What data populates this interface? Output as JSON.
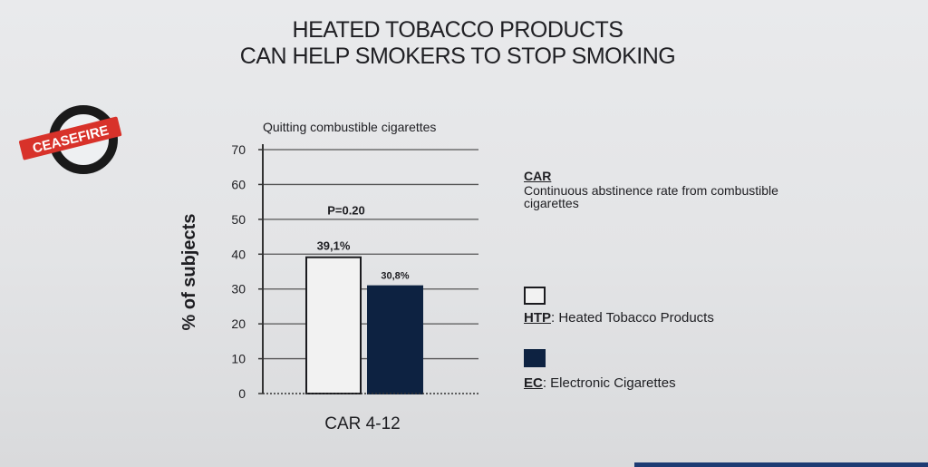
{
  "title_line1": "HEATED TOBACCO PRODUCTS",
  "title_line2": "CAN HELP SMOKERS TO STOP SMOKING",
  "logo": {
    "text": "CEASEFIRE",
    "colors": {
      "ring": "#1a1a1a",
      "banner": "#d8322a"
    }
  },
  "chart_data": {
    "type": "bar",
    "title": "Quitting combustible cigarettes",
    "xlabel": "CAR 4-12",
    "ylabel": "% of subjects",
    "ylim": [
      0,
      70
    ],
    "yticks": [
      0,
      10,
      20,
      30,
      40,
      50,
      60,
      70
    ],
    "grid": true,
    "categories": [
      "CAR 4-12"
    ],
    "series": [
      {
        "name": "HTP",
        "values": [
          39.1
        ],
        "label": "39,1%",
        "color": "#f2f2f2"
      },
      {
        "name": "EC",
        "values": [
          30.8
        ],
        "label": "30,8%",
        "color": "#0d2241"
      }
    ],
    "annotation": "P=0.20"
  },
  "legend": {
    "car_title": "CAR",
    "car_desc": "Continuous abstinence rate from combustible cigarettes",
    "htp_abbr": "HTP",
    "htp_desc": ": Heated Tobacco Products",
    "ec_abbr": "EC",
    "ec_desc": ": Electronic Cigarettes"
  }
}
